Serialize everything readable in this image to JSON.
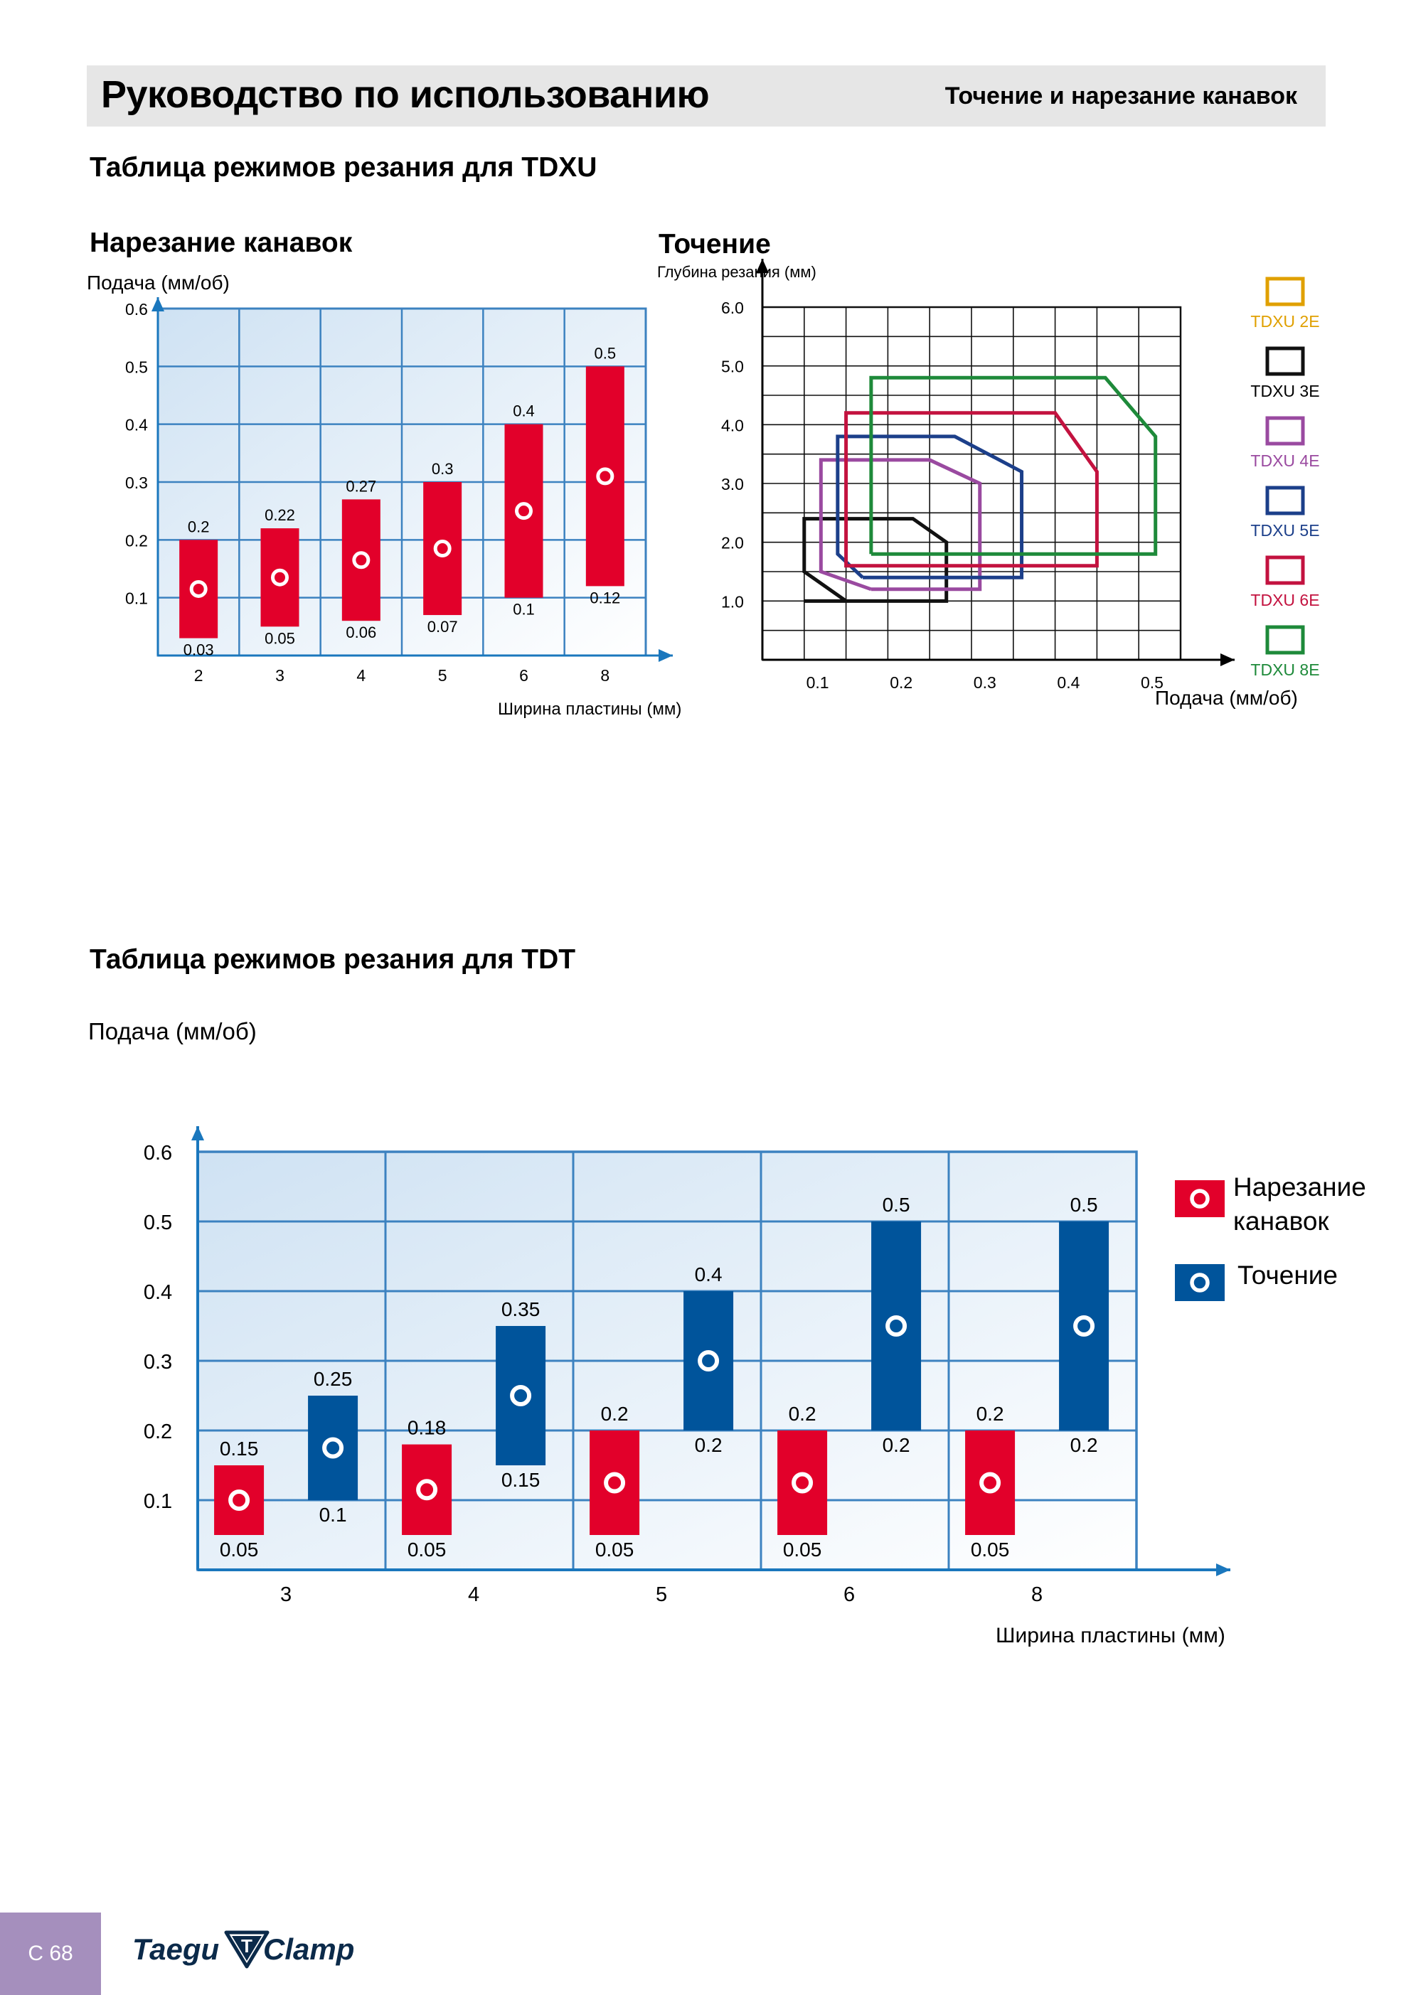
{
  "header": {
    "title": "Руководство по использованию",
    "subtitle": "Точение и нарезание канавок"
  },
  "sections": {
    "tdxu_heading": "Таблица режимов резания для TDXU",
    "tdt_heading": "Таблица режимов резания для TDT"
  },
  "footer": {
    "page_label": "C 68",
    "brand_part1": "Taegu",
    "brand_mark": "T",
    "brand_part2": "Clamp"
  },
  "colors": {
    "grooving": "#e2002a",
    "turning": "#00549b",
    "axis": "#1a77bd",
    "grid": "#3c82c0"
  },
  "chart_data": [
    {
      "id": "tdxu_grooving",
      "type": "bar",
      "title": "Нарезание канавок",
      "ylabel": "Подача (мм/об)",
      "xlabel": "Ширина пластины (мм)",
      "categories": [
        "2",
        "3",
        "4",
        "5",
        "6",
        "8"
      ],
      "ylim": [
        0,
        0.6
      ],
      "yticks": [
        0.1,
        0.2,
        0.3,
        0.4,
        0.5,
        0.6
      ],
      "grid": true,
      "series": [
        {
          "color": "#e2002a",
          "ranges": [
            [
              0.03,
              0.2
            ],
            [
              0.05,
              0.22
            ],
            [
              0.06,
              0.27
            ],
            [
              0.07,
              0.3
            ],
            [
              0.1,
              0.4
            ],
            [
              0.12,
              0.5
            ]
          ],
          "low_labels": [
            "0.03",
            "0.05",
            "0.06",
            "0.07",
            "0.1",
            "0.12"
          ],
          "high_labels": [
            "0.2",
            "0.22",
            "0.27",
            "0.3",
            "0.4",
            "0.5"
          ]
        }
      ]
    },
    {
      "id": "tdxu_turning",
      "type": "line",
      "title": "Точение",
      "ylabel": "Глубина резания (мм)",
      "xlabel": "Подача (мм/об)",
      "xlim": [
        0,
        0.5
      ],
      "ylim": [
        0,
        6.0
      ],
      "xticks": [
        "0.1",
        "0.2",
        "0.3",
        "0.4",
        "0.5"
      ],
      "xtick_values": [
        0.1,
        0.2,
        0.3,
        0.4,
        0.5
      ],
      "yticks": [
        "1.0",
        "2.0",
        "3.0",
        "4.0",
        "5.0",
        "6.0"
      ],
      "ytick_values": [
        1.0,
        2.0,
        3.0,
        4.0,
        5.0,
        6.0
      ],
      "grid": true,
      "legend_position": "right",
      "series": [
        {
          "name": "TDXU 2E",
          "color": "#e0a000",
          "points": []
        },
        {
          "name": "TDXU 3E",
          "color": "#111111",
          "points": [
            [
              0.05,
              1.0
            ],
            [
              0.22,
              1.0
            ],
            [
              0.22,
              2.0
            ],
            [
              0.18,
              2.4
            ],
            [
              0.05,
              2.4
            ],
            [
              0.05,
              1.5
            ],
            [
              0.1,
              1.0
            ]
          ]
        },
        {
          "name": "TDXU 4E",
          "color": "#9a4aa0",
          "points": [
            [
              0.13,
              1.2
            ],
            [
              0.26,
              1.2
            ],
            [
              0.26,
              3.0
            ],
            [
              0.2,
              3.4
            ],
            [
              0.07,
              3.4
            ],
            [
              0.07,
              1.5
            ],
            [
              0.13,
              1.2
            ]
          ]
        },
        {
          "name": "TDXU 5E",
          "color": "#1c3f8a",
          "points": [
            [
              0.12,
              1.4
            ],
            [
              0.31,
              1.4
            ],
            [
              0.31,
              3.2
            ],
            [
              0.23,
              3.8
            ],
            [
              0.09,
              3.8
            ],
            [
              0.09,
              1.8
            ],
            [
              0.12,
              1.4
            ]
          ]
        },
        {
          "name": "TDXU 6E",
          "color": "#c3123f",
          "points": [
            [
              0.15,
              1.6
            ],
            [
              0.4,
              1.6
            ],
            [
              0.4,
              3.2
            ],
            [
              0.35,
              4.2
            ],
            [
              0.1,
              4.2
            ],
            [
              0.1,
              1.6
            ],
            [
              0.15,
              1.6
            ]
          ]
        },
        {
          "name": "TDXU 8E",
          "color": "#1e8a3a",
          "points": [
            [
              0.13,
              1.8
            ],
            [
              0.47,
              1.8
            ],
            [
              0.47,
              3.8
            ],
            [
              0.41,
              4.8
            ],
            [
              0.13,
              4.8
            ],
            [
              0.13,
              1.8
            ]
          ]
        }
      ]
    },
    {
      "id": "tdt",
      "type": "bar",
      "title": "",
      "ylabel": "Подача (мм/об)",
      "xlabel": "Ширина пластины (мм)",
      "categories": [
        "3",
        "4",
        "5",
        "6",
        "8"
      ],
      "ylim": [
        0,
        0.6
      ],
      "yticks": [
        0.1,
        0.2,
        0.3,
        0.4,
        0.5,
        0.6
      ],
      "grid": true,
      "legend_position": "right",
      "series": [
        {
          "name": "Нарезание канавок",
          "color": "#e2002a",
          "ranges": [
            [
              0.05,
              0.15
            ],
            [
              0.05,
              0.18
            ],
            [
              0.05,
              0.2
            ],
            [
              0.05,
              0.2
            ],
            [
              0.05,
              0.2
            ]
          ],
          "low_labels": [
            "0.05",
            "0.05",
            "0.05",
            "0.05",
            "0.05"
          ],
          "high_labels": [
            "0.15",
            "0.18",
            "0.2",
            "0.2",
            "0.2"
          ]
        },
        {
          "name": "Точение",
          "color": "#00549b",
          "ranges": [
            [
              0.1,
              0.25
            ],
            [
              0.15,
              0.35
            ],
            [
              0.2,
              0.4
            ],
            [
              0.2,
              0.5
            ],
            [
              0.2,
              0.5
            ]
          ],
          "low_labels": [
            "0.1",
            "0.15",
            "0.2",
            "0.2",
            "0.2"
          ],
          "high_labels": [
            "0.25",
            "0.35",
            "0.4",
            "0.5",
            "0.5"
          ]
        }
      ]
    }
  ]
}
